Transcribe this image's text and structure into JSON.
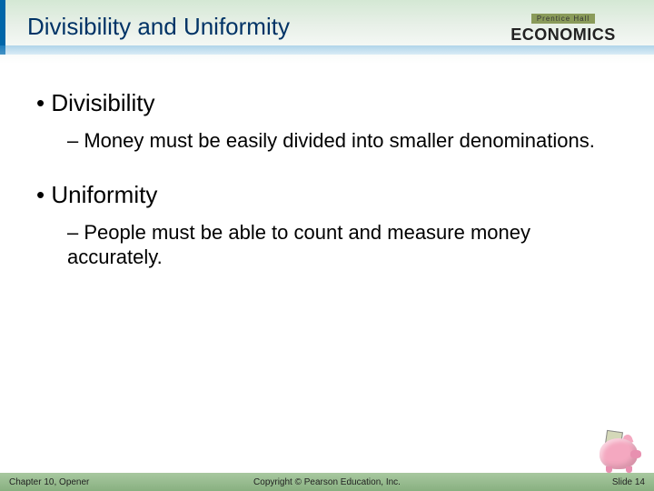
{
  "header": {
    "title": "Divisibility and Uniformity",
    "logo_brand": "Prentice Hall",
    "logo_main": "ECONOMICS"
  },
  "content": {
    "section1": {
      "heading": "Divisibility",
      "body": "Money must be easily divided into smaller denominations."
    },
    "section2": {
      "heading": "Uniformity",
      "body": "People must be able to count and measure money accurately."
    }
  },
  "footer": {
    "left": "Chapter 10, Opener",
    "center": "Copyright © Pearson Education, Inc.",
    "right": "Slide 14"
  },
  "colors": {
    "title_color": "#003366",
    "header_gradient_top": "#d4e8d4",
    "footer_gradient_top": "#a8c8a0",
    "footer_gradient_bottom": "#88b080",
    "piggy_color": "#f4a8c0"
  }
}
